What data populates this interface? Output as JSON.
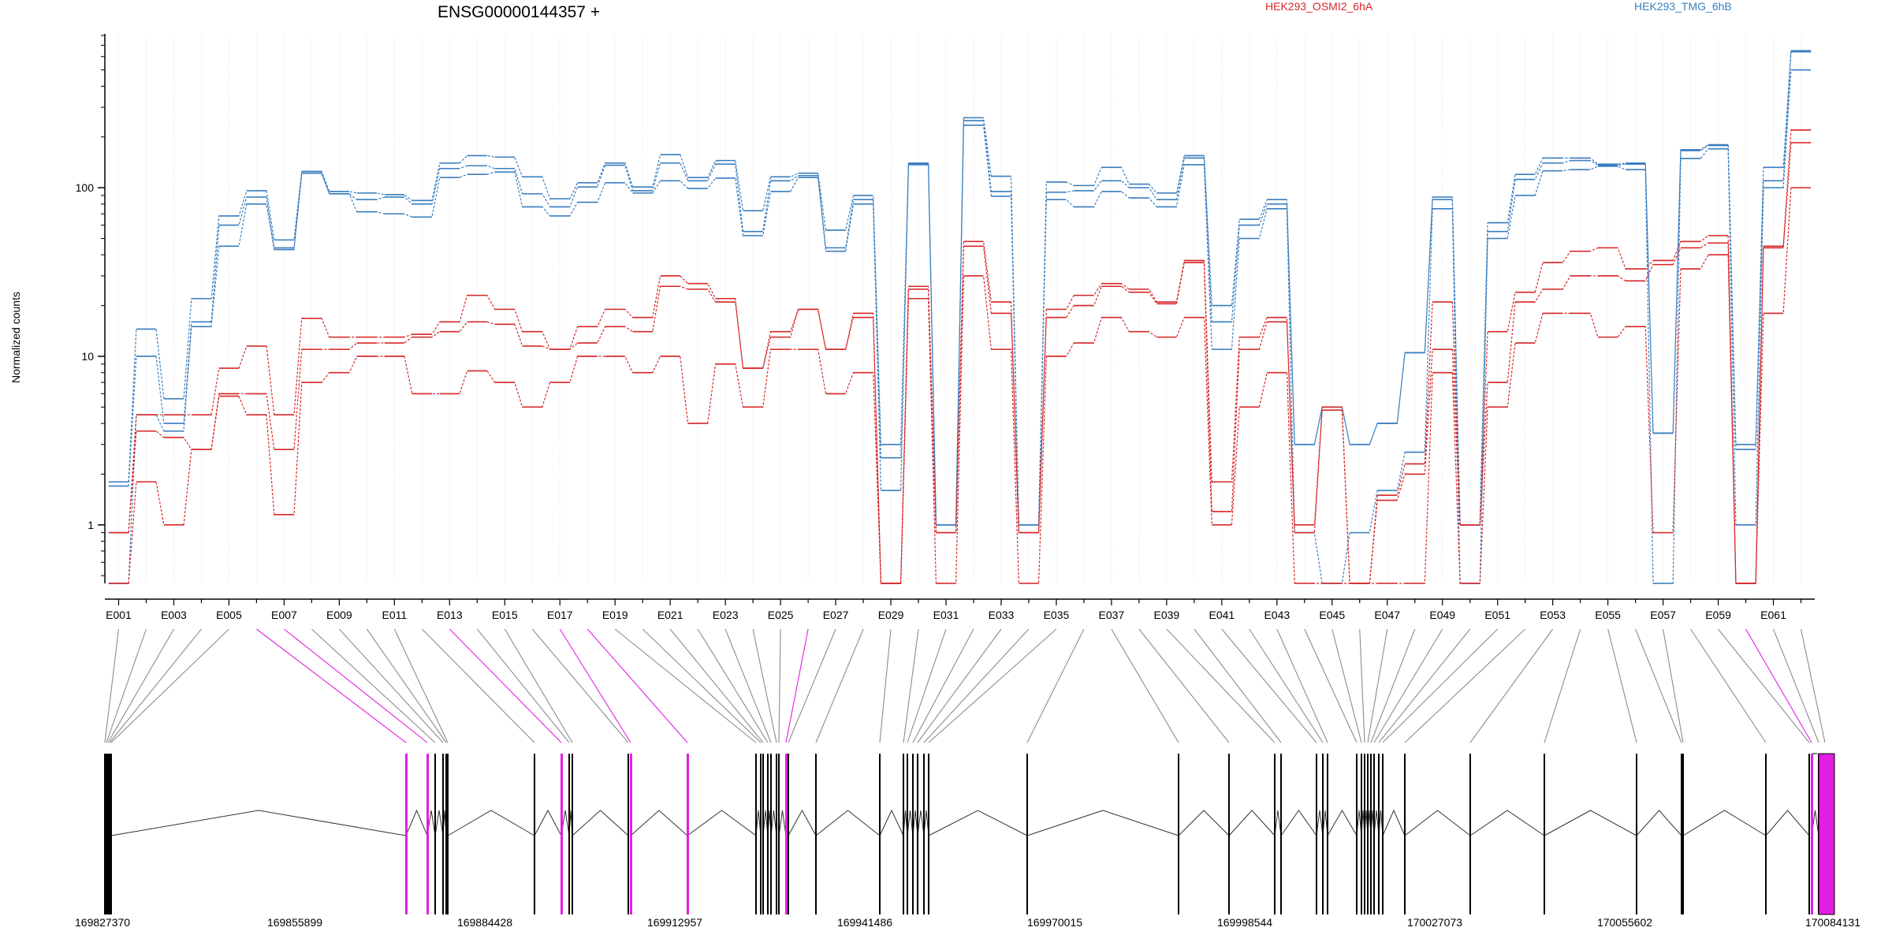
{
  "title": "ENSG00000144357 +",
  "legend": [
    {
      "label": "HEK293_OSMI2_6hA",
      "color": "#d62728"
    },
    {
      "label": "HEK293_TMG_6hB",
      "color": "#3a7ebf"
    }
  ],
  "colors": {
    "osmi": "#d62728",
    "tmg": "#3a7ebf",
    "highlight": "#e21ee2",
    "connector": "#8c8c8c",
    "gene": "#000000"
  },
  "chart_data": {
    "type": "line",
    "title": "ENSG00000144357 +",
    "ylabel": "Normalized counts",
    "yscale": "log",
    "ylim": [
      0.45,
      800
    ],
    "ytick_values": [
      1,
      10,
      100
    ],
    "ytick_labels": [
      "1",
      "10",
      "100"
    ],
    "exons": [
      "E001",
      "E002",
      "E003",
      "E004",
      "E005",
      "E006",
      "E007",
      "E008",
      "E009",
      "E010",
      "E011",
      "E012",
      "E013",
      "E014",
      "E015",
      "E016",
      "E017",
      "E018",
      "E019",
      "E020",
      "E021",
      "E022",
      "E023",
      "E024",
      "E025",
      "E026",
      "E027",
      "E028",
      "E029",
      "E030",
      "E031",
      "E032",
      "E033",
      "E034",
      "E035",
      "E036",
      "E037",
      "E038",
      "E039",
      "E040",
      "E041",
      "E042",
      "E043",
      "E044",
      "E045",
      "E046",
      "E047",
      "E048",
      "E049",
      "E050",
      "E051",
      "E052",
      "E053",
      "E054",
      "E055",
      "E056",
      "E057",
      "E058",
      "E059",
      "E060",
      "E061",
      "E062"
    ],
    "exon_labels_shown": [
      "E001",
      "E003",
      "E005",
      "E007",
      "E009",
      "E011",
      "E013",
      "E015",
      "E017",
      "E019",
      "E021",
      "E023",
      "E025",
      "E027",
      "E029",
      "E031",
      "E033",
      "E035",
      "E037",
      "E039",
      "E041",
      "E043",
      "E045",
      "E047",
      "E049",
      "E051",
      "E053",
      "E055",
      "E057",
      "E059",
      "E061"
    ],
    "series": [
      {
        "name": "HEK293_TMG_6hB",
        "group": "tmg",
        "values": [
          1.8,
          14.5,
          5.6,
          22,
          68,
          96,
          49,
          125,
          95,
          93,
          91,
          84,
          140,
          155,
          152,
          116,
          86,
          107,
          140,
          101,
          157,
          115,
          145,
          73,
          116,
          122,
          56,
          90,
          3,
          140,
          1,
          260,
          117,
          1,
          108,
          103,
          132,
          105,
          93,
          155,
          20,
          65,
          85,
          3,
          5,
          3,
          4,
          10.5,
          88,
          1,
          62,
          120,
          150,
          150,
          138,
          140,
          3.5,
          168,
          180,
          3,
          132,
          650
        ]
      },
      {
        "name": "HEK293_TMG_6hB",
        "group": "tmg",
        "values": [
          1.7,
          10,
          4,
          16,
          60,
          88,
          44,
          122,
          92,
          85,
          88,
          80,
          130,
          135,
          130,
          92,
          77,
          101,
          136,
          96,
          140,
          110,
          138,
          55,
          110,
          118,
          44,
          85,
          2.5,
          138,
          1,
          250,
          95,
          1,
          94,
          96,
          110,
          100,
          85,
          150,
          16,
          60,
          80,
          3,
          5,
          3,
          4,
          10.5,
          85,
          1,
          55,
          112,
          140,
          145,
          136,
          138,
          3.5,
          166,
          178,
          2.8,
          110,
          640
        ]
      },
      {
        "name": "HEK293_TMG_6hB",
        "group": "tmg",
        "values": [
          0.45,
          4.5,
          3.6,
          15,
          45,
          80,
          43,
          122,
          92,
          72,
          70,
          67,
          115,
          120,
          124,
          77,
          68,
          82,
          107,
          93,
          110,
          99,
          114,
          52,
          95,
          115,
          42,
          80,
          1.6,
          137,
          1,
          235,
          89,
          1,
          85,
          77,
          95,
          87,
          77,
          137,
          11,
          50,
          75,
          0.9,
          0.45,
          0.9,
          1.6,
          2.7,
          75,
          0.45,
          50,
          90,
          126,
          128,
          134,
          128,
          0.45,
          149,
          170,
          1,
          100,
          500
        ]
      },
      {
        "name": "HEK293_OSMI2_6hA",
        "group": "osmi",
        "values": [
          0.9,
          4.5,
          4.5,
          4.5,
          8.5,
          11.5,
          4.5,
          16.8,
          13,
          13,
          13,
          13.5,
          16,
          23,
          19,
          14,
          11,
          15,
          19,
          17,
          30,
          27,
          22,
          8.5,
          14,
          19,
          11,
          18,
          0.45,
          26,
          0.9,
          48,
          21,
          0.9,
          19,
          23,
          27,
          25,
          21,
          37,
          1.8,
          13,
          17,
          1,
          5,
          0.45,
          1.5,
          2.3,
          21,
          1,
          14,
          24,
          36,
          42,
          44,
          33,
          37,
          48,
          52,
          0.45,
          45,
          220
        ]
      },
      {
        "name": "HEK293_OSMI2_6hA",
        "group": "osmi",
        "values": [
          0.9,
          3.6,
          3.3,
          2.8,
          6,
          6,
          2.8,
          11,
          11,
          12,
          12,
          13,
          14,
          16,
          15.5,
          11.5,
          11,
          12,
          15,
          14,
          26,
          25,
          21,
          8.5,
          13,
          19,
          11,
          17,
          0.45,
          25,
          0.9,
          45,
          18,
          0.9,
          17,
          20,
          26,
          24,
          20.5,
          36,
          1.2,
          11,
          16,
          0.9,
          4.8,
          0.45,
          1.4,
          2,
          11,
          1,
          7,
          21,
          25,
          30,
          30,
          28,
          35,
          44,
          47,
          0.45,
          44,
          185
        ]
      },
      {
        "name": "HEK293_OSMI2_6hA",
        "group": "osmi",
        "values": [
          0.45,
          1.8,
          1,
          2.8,
          5.8,
          4.5,
          1.15,
          7,
          8,
          10,
          10,
          6,
          6,
          8.2,
          7,
          5,
          7,
          10,
          10,
          8,
          10,
          4,
          9,
          5,
          11,
          11,
          6,
          8,
          0.45,
          22,
          0.45,
          30,
          11,
          0.45,
          10,
          12,
          17,
          14,
          13,
          17,
          1,
          5,
          8,
          0.45,
          0.45,
          0.45,
          0.45,
          0.45,
          8,
          0.45,
          5,
          12,
          18,
          18,
          13,
          15,
          0.9,
          33,
          40,
          0.45,
          18,
          100
        ]
      }
    ],
    "genomic_axis": {
      "ticks": [
        "169827370",
        "169855899",
        "169884428",
        "169912957",
        "169941486",
        "169970015",
        "169998544",
        "170027073",
        "170055602",
        "170084131"
      ]
    }
  }
}
